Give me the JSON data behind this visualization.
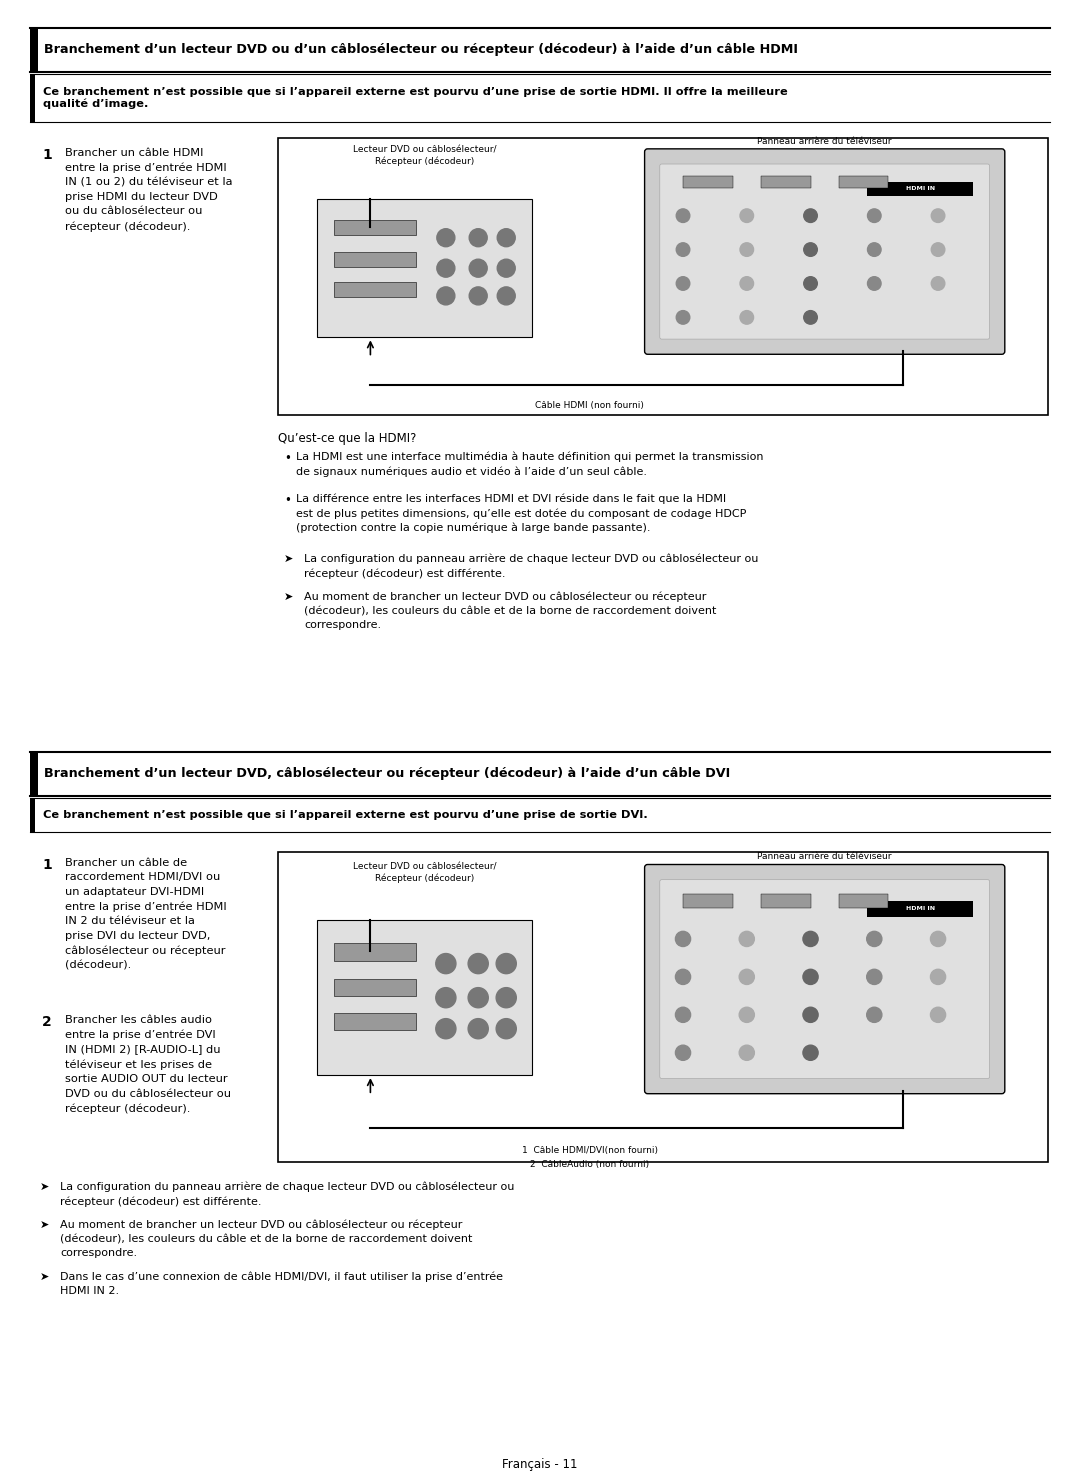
{
  "bg_color": "#ffffff",
  "section1": {
    "title": "Branchement d’un lecteur DVD ou d’un câblosélecteur ou récepteur (décodeur) à l’aide d’un câble HDMI",
    "subtitle": "Ce branchement n’est possible que si l’appareil externe est pourvu d’une prise de sortie HDMI. Il offre la meilleure\nqualité d’image.",
    "step1_num": "1",
    "step1_text": "Brancher un câble HDMI\nentre la prise d’entrée HDMI\nIN (1 ou 2) du téléviseur et la\nprise HDMI du lecteur DVD\nou du câblosélecteur ou\nrécepteur (décodeur).",
    "diagram_label_left": "Lecteur DVD ou câblosélecteur/\nRécepteur (décodeur)",
    "diagram_label_right": "Panneau arrière du téléviseur",
    "diagram_cable_label": "Câble HDMI (non fourni)",
    "hdmi_section_title": "Qu’est-ce que la HDMI?",
    "bullet1": "La HDMI est une interface multimédia à haute définition qui permet la transmission\nde signaux numériques audio et vidéo à l’aide d’un seul câble.",
    "bullet2": "La différence entre les interfaces HDMI et DVI réside dans le fait que la HDMI\nest de plus petites dimensions, qu’elle est dotée du composant de codage HDCP\n(protection contre la copie numérique à large bande passante).",
    "arrow1": "La configuration du panneau arrière de chaque lecteur DVD ou câblosélecteur ou\nrécepteur (décodeur) est différente.",
    "arrow2": "Au moment de brancher un lecteur DVD ou câblosélecteur ou récepteur\n(décodeur), les couleurs du câble et de la borne de raccordement doivent\ncorrespondre."
  },
  "section2": {
    "title": "Branchement d’un lecteur DVD, câblosélecteur ou récepteur (décodeur) à l’aide d’un câble DVI",
    "subtitle": "Ce branchement n’est possible que si l’appareil externe est pourvu d’une prise de sortie DVI.",
    "step1_num": "1",
    "step1_text": "Brancher un câble de\nraccordement HDMI/DVI ou\nun adaptateur DVI-HDMI\nentre la prise d’entrée HDMI\nIN 2 du téléviseur et la\nprise DVI du lecteur DVD,\ncâblosélecteur ou récepteur\n(décodeur).",
    "step2_num": "2",
    "step2_text": "Brancher les câbles audio\nentre la prise d’entrée DVI\nIN (HDMI 2) [R-AUDIO-L] du\ntéléviseur et les prises de\nsortie AUDIO OUT du lecteur\nDVD ou du câblosélecteur ou\nrécepteur (décodeur).",
    "diagram_label_left": "Lecteur DVD ou câblosélecteur/\nRécepteur (décodeur)",
    "diagram_label_right": "Panneau arrière du téléviseur",
    "diagram_cable1_label": "1  Câble HDMI/DVI(non fourni)",
    "diagram_cable2_label": "2  CâbleAudio (non fourni)",
    "arrow1": "La configuration du panneau arrière de chaque lecteur DVD ou câblosélecteur ou\nrécepteur (décodeur) est différente.",
    "arrow2": "Au moment de brancher un lecteur DVD ou câblosélecteur ou récepteur\n(décodeur), les couleurs du câble et de la borne de raccordement doivent\ncorrespondre.",
    "arrow3": "Dans le cas d’une connexion de câble HDMI/DVI, il faut utiliser la prise d’entrée\nHDMI IN 2."
  },
  "footer": "Français - 11"
}
